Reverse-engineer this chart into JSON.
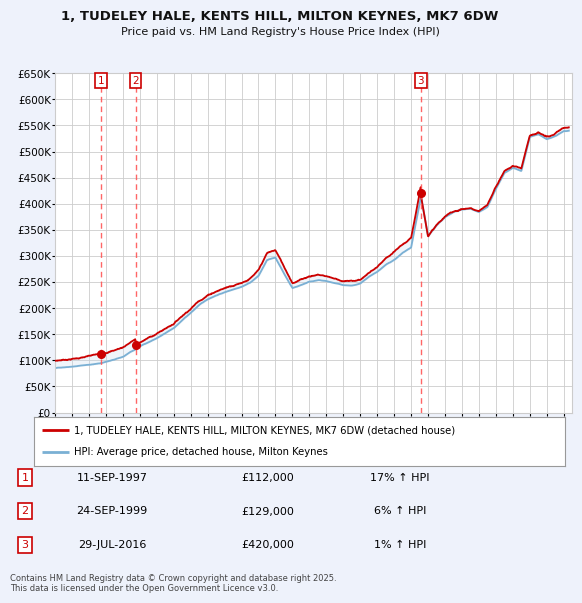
{
  "title": "1, TUDELEY HALE, KENTS HILL, MILTON KEYNES, MK7 6DW",
  "subtitle": "Price paid vs. HM Land Registry's House Price Index (HPI)",
  "legend_line1": "1, TUDELEY HALE, KENTS HILL, MILTON KEYNES, MK7 6DW (detached house)",
  "legend_line2": "HPI: Average price, detached house, Milton Keynes",
  "footer": "Contains HM Land Registry data © Crown copyright and database right 2025.\nThis data is licensed under the Open Government Licence v3.0.",
  "sales": [
    {
      "num": 1,
      "date": "11-SEP-1997",
      "year": 1997.7,
      "price": 112000,
      "hpi_pct": "17% ↑ HPI"
    },
    {
      "num": 2,
      "date": "24-SEP-1999",
      "year": 1999.75,
      "price": 129000,
      "hpi_pct": "6% ↑ HPI"
    },
    {
      "num": 3,
      "date": "29-JUL-2016",
      "year": 2016.58,
      "price": 420000,
      "hpi_pct": "1% ↑ HPI"
    }
  ],
  "ylim": [
    0,
    650000
  ],
  "xlim_start": 1995.0,
  "xlim_end": 2025.5,
  "bg_color": "#eef2fb",
  "plot_bg": "#ffffff",
  "red_color": "#cc0000",
  "blue_color": "#7ab0d4",
  "blue_fill": "#c5d8ec",
  "grid_color": "#cccccc",
  "dashed_color": "#ff5555",
  "title_color": "#111111"
}
